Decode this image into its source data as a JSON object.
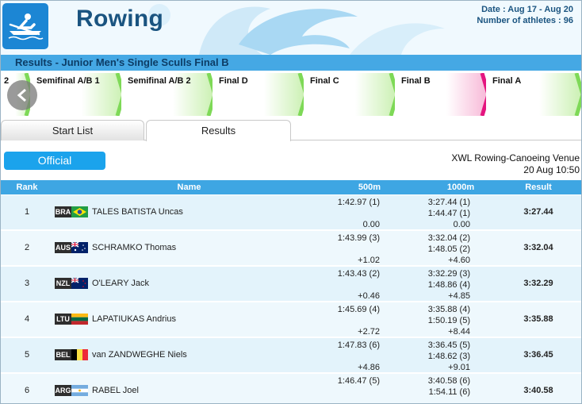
{
  "header": {
    "title": "Rowing",
    "date_text": "Date : Aug 17 - Aug 20",
    "athletes_text": "Number of athletes : 96",
    "subtitle": "Results - Junior Men's Single Sculls Final B"
  },
  "phases": [
    "2",
    "Semifinal A/B 1",
    "Semifinal A/B 2",
    "Final D",
    "Final C",
    "Final B",
    "Final A"
  ],
  "active_phase": "Final B",
  "tabs": {
    "start_list": "Start List",
    "results": "Results"
  },
  "status_badge": "Official",
  "venue": {
    "name": "XWL Rowing-Canoeing Venue",
    "datetime": "20 Aug 10:50"
  },
  "table": {
    "headers": {
      "rank": "Rank",
      "name": "Name",
      "m500": "500m",
      "m1000": "1000m",
      "result": "Result"
    },
    "rows": [
      {
        "rank": "1",
        "noc": "BRA",
        "name": "TALES BATISTA Uncas",
        "s500_time": "1:42.97 (1)",
        "s500_behind": "0.00",
        "s1000_time": "3:27.44 (1)",
        "s1000_split": "1:44.47 (1)",
        "s1000_behind": "0.00",
        "result": "3:27.44"
      },
      {
        "rank": "2",
        "noc": "AUS",
        "name": "SCHRAMKO Thomas",
        "s500_time": "1:43.99 (3)",
        "s500_behind": "+1.02",
        "s1000_time": "3:32.04 (2)",
        "s1000_split": "1:48.05 (2)",
        "s1000_behind": "+4.60",
        "result": "3:32.04"
      },
      {
        "rank": "3",
        "noc": "NZL",
        "name": "O'LEARY Jack",
        "s500_time": "1:43.43 (2)",
        "s500_behind": "+0.46",
        "s1000_time": "3:32.29 (3)",
        "s1000_split": "1:48.86 (4)",
        "s1000_behind": "+4.85",
        "result": "3:32.29"
      },
      {
        "rank": "4",
        "noc": "LTU",
        "name": "LAPATIUKAS Andrius",
        "s500_time": "1:45.69 (4)",
        "s500_behind": "+2.72",
        "s1000_time": "3:35.88 (4)",
        "s1000_split": "1:50.19 (5)",
        "s1000_behind": "+8.44",
        "result": "3:35.88"
      },
      {
        "rank": "5",
        "noc": "BEL",
        "name": "van ZANDWEGHE Niels",
        "s500_time": "1:47.83 (6)",
        "s500_behind": "+4.86",
        "s1000_time": "3:36.45 (5)",
        "s1000_split": "1:48.62 (3)",
        "s1000_behind": "+9.01",
        "result": "3:36.45"
      },
      {
        "rank": "6",
        "noc": "ARG",
        "name": "RABEL Joel",
        "s500_time": "1:46.47 (5)",
        "s500_behind": "",
        "s1000_time": "3:40.58 (6)",
        "s1000_split": "1:54.11 (6)",
        "s1000_behind": "",
        "result": "3:40.58"
      }
    ]
  },
  "icons": [
    "rowing-icon",
    "chevron-left-icon",
    "flag-bra-icon",
    "flag-aus-icon",
    "flag-nzl-icon",
    "flag-ltu-icon",
    "flag-bel-icon",
    "flag-arg-icon"
  ],
  "colors": {
    "brand": "#1c86d4",
    "subtitle_bar": "#45a8e4",
    "phase_green": "#7ed957",
    "phase_active": "#e4157f",
    "table_header": "#3ea6e3",
    "official": "#1ba3ec"
  }
}
